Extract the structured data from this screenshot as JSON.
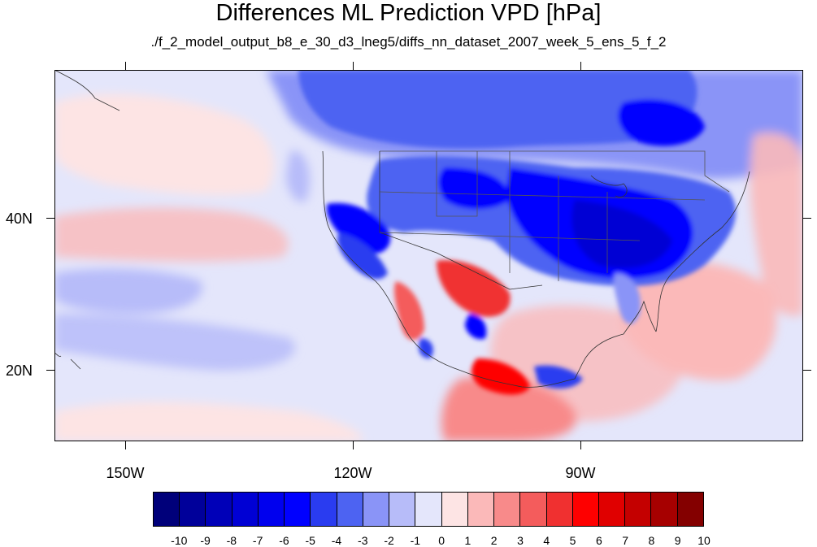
{
  "title": "Differences ML Prediction VPD [hPa]",
  "subtitle": "./f_2_model_output_b8_e_30_d3_lneg5/diffs_nn_dataset_2007_week_5_ens_5_f_2",
  "axes": {
    "latitude_labels": [
      "40N",
      "20N"
    ],
    "longitude_labels": [
      "150W",
      "120W",
      "90W"
    ]
  },
  "colorbar": {
    "labels": [
      "-10",
      "-9",
      "-8",
      "-7",
      "-6",
      "-5",
      "-4",
      "-3",
      "-2",
      "-1",
      "0",
      "1",
      "2",
      "3",
      "4",
      "5",
      "6",
      "7",
      "8",
      "9",
      "10"
    ],
    "colors": [
      "#00007a",
      "#00009a",
      "#0000b8",
      "#0000d4",
      "#0000ee",
      "#0000ff",
      "#2a3cf0",
      "#4d63f2",
      "#8a94f7",
      "#b7bcf9",
      "#e4e6fb",
      "#fde4e4",
      "#fbb9b9",
      "#f88a8a",
      "#f45c5c",
      "#f03030",
      "#fe0000",
      "#e00000",
      "#c40000",
      "#a60000",
      "#840000"
    ]
  },
  "map": {
    "background_color": "#e4e6fb",
    "data_range": [
      -10,
      10
    ],
    "domain": "North America / eastern Pacific"
  }
}
